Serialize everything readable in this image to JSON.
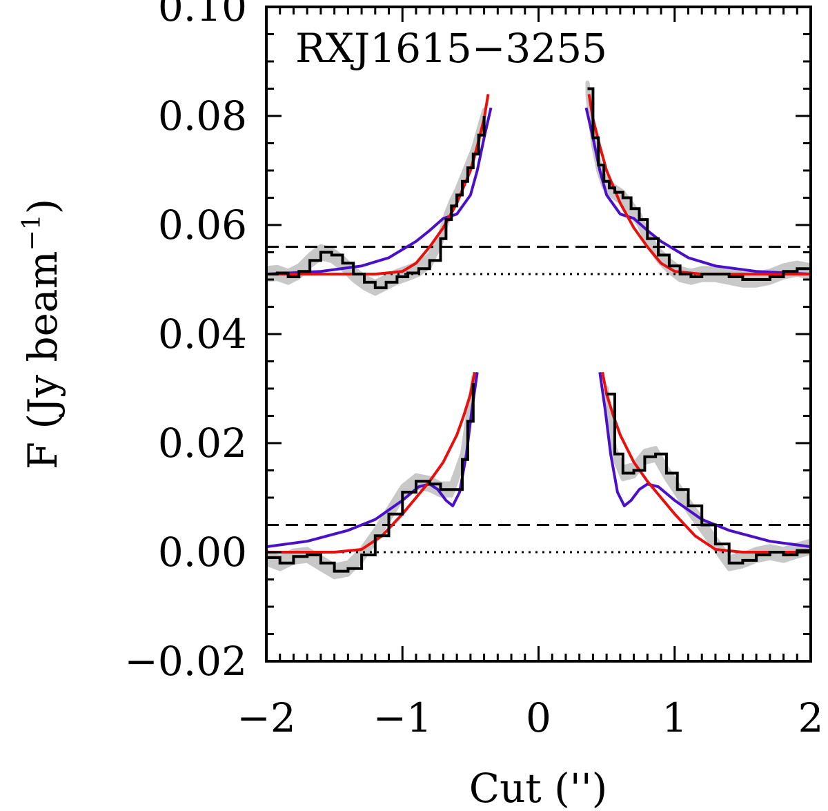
{
  "chart_data": {
    "type": "line",
    "title": "RXJ1615−3255",
    "xlabel": "Cut ('')",
    "ylabel": "F (Jy beam",
    "ylabel_sup": "−1",
    "ylabel_close": ")",
    "xlim": [
      -2,
      2
    ],
    "ylim": [
      -0.02,
      0.1
    ],
    "xticks": [
      -2,
      -1,
      0,
      1,
      2
    ],
    "xtick_labels": [
      "−2",
      "−1",
      "0",
      "1",
      "2"
    ],
    "yticks": [
      -0.02,
      0.0,
      0.02,
      0.04,
      0.06,
      0.08,
      0.1
    ],
    "ytick_labels": [
      "−0.02",
      "0.00",
      "0.02",
      "0.04",
      "0.06",
      "0.08",
      "0.10"
    ],
    "grid": false,
    "colors": {
      "data": "#000000",
      "error_band": "#c8c8c8",
      "model_red": "#e8100c",
      "model_blue": "#4a10c8",
      "reference": "#000000"
    },
    "reference_lines": [
      {
        "kind": "dashed",
        "y": 0.056
      },
      {
        "kind": "dotted",
        "y": 0.051
      },
      {
        "kind": "dashed",
        "y": 0.005
      },
      {
        "kind": "dotted",
        "y": 0.0
      }
    ],
    "profiles": [
      {
        "segments": [
          {
            "x": [
              -2.0,
              -1.92,
              -1.84,
              -1.76,
              -1.68,
              -1.6,
              -1.52,
              -1.44,
              -1.36,
              -1.28,
              -1.2,
              -1.12,
              -1.04,
              -0.96,
              -0.88,
              -0.8,
              -0.72,
              -0.68,
              -0.64,
              -0.6,
              -0.56,
              -0.52,
              -0.48,
              -0.44,
              -0.4
            ],
            "y": [
              0.051,
              0.0512,
              0.0505,
              0.0515,
              0.0535,
              0.055,
              0.0545,
              0.053,
              0.051,
              0.0495,
              0.0485,
              0.0495,
              0.0505,
              0.0512,
              0.052,
              0.0535,
              0.0575,
              0.061,
              0.0635,
              0.0655,
              0.068,
              0.0705,
              0.073,
              0.0765,
              0.08
            ],
            "err": 0.0011
          },
          {
            "x": [
              0.36,
              0.4,
              0.44,
              0.48,
              0.52,
              0.56,
              0.62,
              0.68,
              0.74,
              0.8,
              0.88,
              0.96,
              1.04,
              1.12,
              1.2,
              1.3,
              1.4,
              1.5,
              1.6,
              1.7,
              1.8,
              1.9,
              2.0
            ],
            "y": [
              0.085,
              0.076,
              0.071,
              0.068,
              0.0668,
              0.066,
              0.065,
              0.063,
              0.061,
              0.0575,
              0.0545,
              0.0525,
              0.051,
              0.0505,
              0.051,
              0.051,
              0.0505,
              0.05,
              0.05,
              0.0505,
              0.0515,
              0.052,
              0.0515
            ],
            "err": 0.0011
          }
        ],
        "model_red": [
          {
            "x": [
              -2.0,
              -1.6,
              -1.2,
              -1.0,
              -0.9,
              -0.8,
              -0.7,
              -0.6,
              -0.5,
              -0.45,
              -0.4,
              -0.37
            ],
            "y": [
              0.051,
              0.051,
              0.051,
              0.0515,
              0.053,
              0.056,
              0.0595,
              0.064,
              0.07,
              0.0745,
              0.0795,
              0.084
            ]
          },
          {
            "x": [
              0.37,
              0.4,
              0.45,
              0.5,
              0.6,
              0.7,
              0.8,
              0.9,
              1.0,
              1.2,
              1.6,
              2.0
            ],
            "y": [
              0.084,
              0.0795,
              0.0745,
              0.07,
              0.064,
              0.0595,
              0.056,
              0.053,
              0.0515,
              0.051,
              0.051,
              0.051
            ]
          }
        ],
        "model_blue": [
          {
            "x": [
              -2.0,
              -1.6,
              -1.3,
              -1.1,
              -0.9,
              -0.8,
              -0.7,
              -0.6,
              -0.5,
              -0.45,
              -0.4,
              -0.35
            ],
            "y": [
              0.051,
              0.0515,
              0.0525,
              0.054,
              0.057,
              0.059,
              0.0612,
              0.062,
              0.0655,
              0.07,
              0.076,
              0.0815
            ]
          },
          {
            "x": [
              0.35,
              0.4,
              0.45,
              0.5,
              0.6,
              0.7,
              0.8,
              0.9,
              1.1,
              1.3,
              1.6,
              2.0
            ],
            "y": [
              0.0815,
              0.076,
              0.07,
              0.0655,
              0.062,
              0.0612,
              0.059,
              0.057,
              0.054,
              0.0525,
              0.0515,
              0.051
            ]
          }
        ]
      },
      {
        "segments": [
          {
            "x": [
              -2.0,
              -1.9,
              -1.8,
              -1.7,
              -1.6,
              -1.5,
              -1.4,
              -1.3,
              -1.2,
              -1.1,
              -1.0,
              -0.9,
              -0.8,
              -0.72,
              -0.64,
              -0.56,
              -0.52,
              -0.48
            ],
            "y": [
              -0.001,
              -0.002,
              -0.0008,
              -0.0005,
              -0.002,
              -0.0035,
              -0.003,
              -0.0005,
              0.003,
              0.007,
              0.011,
              0.013,
              0.0125,
              0.0115,
              0.0115,
              0.017,
              0.024,
              0.031
            ],
            "err": 0.0011
          },
          {
            "x": [
              0.5,
              0.56,
              0.62,
              0.7,
              0.78,
              0.86,
              0.94,
              1.02,
              1.1,
              1.2,
              1.3,
              1.4,
              1.5,
              1.6,
              1.7,
              1.8,
              1.9,
              2.0
            ],
            "y": [
              0.029,
              0.018,
              0.0145,
              0.015,
              0.0175,
              0.018,
              0.0145,
              0.0115,
              0.0085,
              0.005,
              0.0015,
              -0.002,
              -0.0015,
              -0.0005,
              0.0,
              -0.0005,
              0.0003,
              0.001
            ],
            "err": 0.0011
          }
        ],
        "model_red": [
          {
            "x": [
              -2.0,
              -1.5,
              -1.3,
              -1.15,
              -1.0,
              -0.9,
              -0.8,
              -0.7,
              -0.6,
              -0.55,
              -0.5,
              -0.47
            ],
            "y": [
              0.0,
              0.0,
              0.0005,
              0.003,
              0.007,
              0.01,
              0.013,
              0.0165,
              0.0215,
              0.025,
              0.029,
              0.033
            ]
          },
          {
            "x": [
              0.47,
              0.5,
              0.55,
              0.6,
              0.7,
              0.8,
              0.9,
              1.0,
              1.15,
              1.3,
              1.5,
              2.0
            ],
            "y": [
              0.033,
              0.029,
              0.025,
              0.0215,
              0.0165,
              0.013,
              0.01,
              0.007,
              0.003,
              0.0005,
              0.0,
              0.0
            ]
          }
        ],
        "model_blue": [
          {
            "x": [
              -2.0,
              -1.7,
              -1.4,
              -1.2,
              -1.0,
              -0.88,
              -0.8,
              -0.74,
              -0.68,
              -0.63,
              -0.58,
              -0.53,
              -0.49,
              -0.45
            ],
            "y": [
              0.001,
              0.002,
              0.004,
              0.006,
              0.0095,
              0.012,
              0.0125,
              0.0115,
              0.0095,
              0.0085,
              0.011,
              0.018,
              0.026,
              0.033
            ]
          },
          {
            "x": [
              0.45,
              0.49,
              0.53,
              0.58,
              0.63,
              0.68,
              0.74,
              0.8,
              0.88,
              1.0,
              1.2,
              1.4,
              1.7,
              2.0
            ],
            "y": [
              0.033,
              0.026,
              0.018,
              0.011,
              0.0085,
              0.0095,
              0.0115,
              0.0125,
              0.012,
              0.0095,
              0.006,
              0.004,
              0.002,
              0.001
            ]
          }
        ]
      }
    ]
  }
}
